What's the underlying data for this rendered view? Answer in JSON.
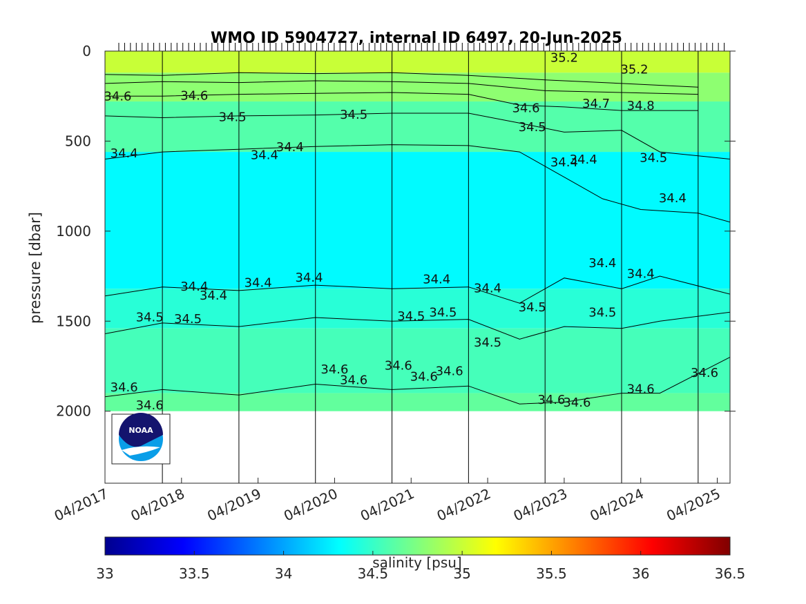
{
  "chart_data": {
    "type": "heatmap",
    "title": "WMO ID 5904727, internal ID 6497, 20-Jun-2025",
    "xlabel": "",
    "ylabel": "pressure [dbar]",
    "y_reversed": true,
    "ylim": [
      0,
      2400
    ],
    "yticks": [
      {
        "value": 0,
        "label": "0"
      },
      {
        "value": 500,
        "label": "500"
      },
      {
        "value": 1000,
        "label": "1000"
      },
      {
        "value": 1500,
        "label": "1500"
      },
      {
        "value": 2000,
        "label": "2000"
      }
    ],
    "xlim": [
      "2017-04",
      "2025-06"
    ],
    "xticks": [
      {
        "value": "2017-04",
        "label": "04/2017"
      },
      {
        "value": "2018-04",
        "label": "04/2018"
      },
      {
        "value": "2019-04",
        "label": "04/2019"
      },
      {
        "value": "2020-04",
        "label": "04/2020"
      },
      {
        "value": "2021-04",
        "label": "04/2021"
      },
      {
        "value": "2022-04",
        "label": "04/2022"
      },
      {
        "value": "2023-04",
        "label": "04/2023"
      },
      {
        "value": "2024-04",
        "label": "04/2024"
      },
      {
        "value": "2025-04",
        "label": "04/2025"
      }
    ],
    "year_boundaries": [
      "2018-01",
      "2019-01",
      "2020-01",
      "2021-01",
      "2022-01",
      "2023-01",
      "2024-01",
      "2025-01"
    ],
    "colorbar": {
      "label": "salinity [psu]",
      "range": [
        33,
        36.5
      ],
      "ticks": [
        "33",
        "33.5",
        "34",
        "34.5",
        "35",
        "35.5",
        "36",
        "36.5"
      ],
      "colormap": "jet"
    },
    "max_profile_depth_dbar": 2000,
    "fill_bands": [
      {
        "from": 0,
        "to": 120,
        "salinity": 35.0
      },
      {
        "from": 120,
        "to": 280,
        "salinity": 34.8
      },
      {
        "from": 280,
        "to": 560,
        "salinity": 34.6
      },
      {
        "from": 560,
        "to": 1320,
        "salinity": 34.3
      },
      {
        "from": 1320,
        "to": 1540,
        "salinity": 34.45
      },
      {
        "from": 1540,
        "to": 1900,
        "salinity": 34.55
      },
      {
        "from": 1900,
        "to": 2000,
        "salinity": 34.65
      }
    ],
    "contours": [
      {
        "value": 34.4,
        "points": [
          [
            "2017-04",
            600
          ],
          [
            "2018-01",
            560
          ],
          [
            "2019-01",
            545
          ],
          [
            "2020-01",
            530
          ],
          [
            "2021-01",
            520
          ],
          [
            "2022-01",
            525
          ],
          [
            "2022-09",
            560
          ],
          [
            "2023-04",
            700
          ],
          [
            "2023-10",
            820
          ],
          [
            "2024-04",
            880
          ],
          [
            "2025-01",
            900
          ],
          [
            "2025-06",
            950
          ]
        ]
      },
      {
        "value": 34.5,
        "points": [
          [
            "2017-04",
            360
          ],
          [
            "2018-01",
            370
          ],
          [
            "2019-01",
            360
          ],
          [
            "2020-01",
            355
          ],
          [
            "2021-01",
            345
          ],
          [
            "2022-01",
            345
          ],
          [
            "2022-09",
            400
          ],
          [
            "2023-04",
            450
          ],
          [
            "2024-01",
            440
          ],
          [
            "2024-07",
            560
          ],
          [
            "2025-06",
            600
          ]
        ]
      },
      {
        "value": 34.6,
        "points": [
          [
            "2017-04",
            250
          ],
          [
            "2018-01",
            250
          ],
          [
            "2019-01",
            240
          ],
          [
            "2020-01",
            235
          ],
          [
            "2021-01",
            230
          ],
          [
            "2022-01",
            240
          ],
          [
            "2022-09",
            300
          ],
          [
            "2023-04",
            310
          ],
          [
            "2024-01",
            330
          ],
          [
            "2025-01",
            330
          ]
        ]
      },
      {
        "value": 34.7,
        "points": [
          [
            "2017-04",
            180
          ],
          [
            "2018-01",
            170
          ],
          [
            "2019-01",
            175
          ],
          [
            "2020-01",
            165
          ],
          [
            "2021-01",
            170
          ],
          [
            "2022-01",
            180
          ],
          [
            "2023-01",
            220
          ],
          [
            "2024-01",
            230
          ],
          [
            "2025-01",
            240
          ]
        ]
      },
      {
        "value": 34.8,
        "points": [
          [
            "2017-04",
            130
          ],
          [
            "2018-01",
            135
          ],
          [
            "2019-01",
            120
          ],
          [
            "2020-01",
            125
          ],
          [
            "2021-01",
            120
          ],
          [
            "2022-01",
            135
          ],
          [
            "2023-01",
            160
          ],
          [
            "2024-01",
            180
          ],
          [
            "2025-01",
            200
          ]
        ]
      },
      {
        "value": 34.4,
        "points": [
          [
            "2017-04",
            1360
          ],
          [
            "2018-01",
            1310
          ],
          [
            "2019-01",
            1330
          ],
          [
            "2020-01",
            1300
          ],
          [
            "2021-01",
            1320
          ],
          [
            "2022-01",
            1310
          ],
          [
            "2022-09",
            1400
          ],
          [
            "2023-04",
            1260
          ],
          [
            "2024-01",
            1320
          ],
          [
            "2024-07",
            1250
          ],
          [
            "2025-06",
            1350
          ]
        ]
      },
      {
        "value": 34.5,
        "points": [
          [
            "2017-04",
            1570
          ],
          [
            "2018-01",
            1510
          ],
          [
            "2019-01",
            1530
          ],
          [
            "2020-01",
            1480
          ],
          [
            "2021-01",
            1500
          ],
          [
            "2022-01",
            1490
          ],
          [
            "2022-09",
            1600
          ],
          [
            "2023-04",
            1530
          ],
          [
            "2024-01",
            1540
          ],
          [
            "2024-07",
            1500
          ],
          [
            "2025-06",
            1450
          ]
        ]
      },
      {
        "value": 34.6,
        "points": [
          [
            "2017-04",
            1920
          ],
          [
            "2018-01",
            1880
          ],
          [
            "2019-01",
            1910
          ],
          [
            "2020-01",
            1850
          ],
          [
            "2021-01",
            1880
          ],
          [
            "2022-01",
            1860
          ],
          [
            "2022-09",
            1960
          ],
          [
            "2023-04",
            1950
          ],
          [
            "2024-01",
            1900
          ],
          [
            "2024-07",
            1900
          ],
          [
            "2025-06",
            1700
          ]
        ]
      }
    ],
    "contour_labels": [
      {
        "text": "34.4",
        "x": "2017-07",
        "y": 590
      },
      {
        "text": "34.4",
        "x": "2019-05",
        "y": 600
      },
      {
        "text": "34.4",
        "x": "2019-09",
        "y": 555
      },
      {
        "text": "34.4",
        "x": "2023-04",
        "y": 640
      },
      {
        "text": "34.4",
        "x": "2023-07",
        "y": 625
      },
      {
        "text": "34.4",
        "x": "2024-09",
        "y": 840
      },
      {
        "text": "34.5",
        "x": "2018-12",
        "y": 390
      },
      {
        "text": "34.5",
        "x": "2020-07",
        "y": 375
      },
      {
        "text": "34.5",
        "x": "2022-11",
        "y": 445
      },
      {
        "text": "34.5",
        "x": "2024-06",
        "y": 615
      },
      {
        "text": "34.6",
        "x": "2017-06",
        "y": 275
      },
      {
        "text": "34.6",
        "x": "2018-06",
        "y": 270
      },
      {
        "text": "34.6",
        "x": "2022-10",
        "y": 340
      },
      {
        "text": "34.7",
        "x": "2023-09",
        "y": 315
      },
      {
        "text": "34.8",
        "x": "2024-04",
        "y": 325
      },
      {
        "text": "35.2",
        "x": "2023-04",
        "y": 60
      },
      {
        "text": "35.2",
        "x": "2024-03",
        "y": 125
      },
      {
        "text": "34.4",
        "x": "2018-06",
        "y": 1330
      },
      {
        "text": "34.4",
        "x": "2018-09",
        "y": 1380
      },
      {
        "text": "34.4",
        "x": "2019-04",
        "y": 1310
      },
      {
        "text": "34.4",
        "x": "2019-12",
        "y": 1280
      },
      {
        "text": "34.4",
        "x": "2021-08",
        "y": 1290
      },
      {
        "text": "34.4",
        "x": "2022-04",
        "y": 1340
      },
      {
        "text": "34.4",
        "x": "2023-10",
        "y": 1200
      },
      {
        "text": "34.4",
        "x": "2024-04",
        "y": 1260
      },
      {
        "text": "34.5",
        "x": "2017-11",
        "y": 1500
      },
      {
        "text": "34.5",
        "x": "2018-05",
        "y": 1510
      },
      {
        "text": "34.5",
        "x": "2021-04",
        "y": 1495
      },
      {
        "text": "34.5",
        "x": "2021-09",
        "y": 1475
      },
      {
        "text": "34.5",
        "x": "2022-04",
        "y": 1640
      },
      {
        "text": "34.5",
        "x": "2022-11",
        "y": 1445
      },
      {
        "text": "34.5",
        "x": "2023-10",
        "y": 1475
      },
      {
        "text": "34.6",
        "x": "2017-07",
        "y": 1890
      },
      {
        "text": "34.6",
        "x": "2017-11",
        "y": 1990
      },
      {
        "text": "34.6",
        "x": "2020-04",
        "y": 1790
      },
      {
        "text": "34.6",
        "x": "2020-07",
        "y": 1850
      },
      {
        "text": "34.6",
        "x": "2021-02",
        "y": 1770
      },
      {
        "text": "34.6",
        "x": "2021-06",
        "y": 1830
      },
      {
        "text": "34.6",
        "x": "2021-10",
        "y": 1800
      },
      {
        "text": "34.6",
        "x": "2023-02",
        "y": 1960
      },
      {
        "text": "34.6",
        "x": "2023-06",
        "y": 1975
      },
      {
        "text": "34.6",
        "x": "2024-04",
        "y": 1900
      },
      {
        "text": "34.6",
        "x": "2025-02",
        "y": 1810
      }
    ],
    "legend": "none"
  },
  "logo": {
    "text": "NOAA"
  }
}
